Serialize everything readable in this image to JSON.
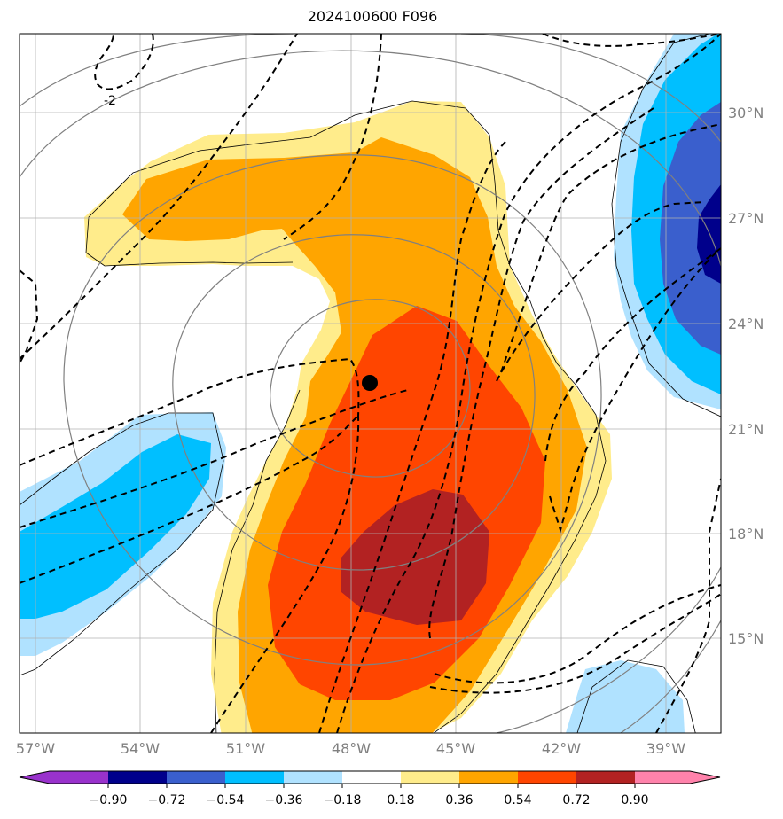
{
  "title": "2024100600 F096",
  "map": {
    "lon_labels": [
      "57°W",
      "54°W",
      "51°W",
      "48°W",
      "45°W",
      "42°W",
      "39°W"
    ],
    "lat_labels": [
      "30°N",
      "27°N",
      "24°N",
      "21°N",
      "18°N",
      "15°N"
    ],
    "contour_label": "-2",
    "center_marker": "storm-center"
  },
  "colorbar": {
    "levels": [
      "−0.90",
      "−0.72",
      "−0.54",
      "−0.36",
      "−0.18",
      "0.18",
      "0.36",
      "0.54",
      "0.72",
      "0.90"
    ],
    "colors": [
      "#9932cc",
      "#00008b",
      "#3a5fcd",
      "#00bfff",
      "#b0e2ff",
      "#ffffff",
      "#ffec8b",
      "#ffa500",
      "#ff4500",
      "#b22222",
      "#ff82ab"
    ]
  }
}
